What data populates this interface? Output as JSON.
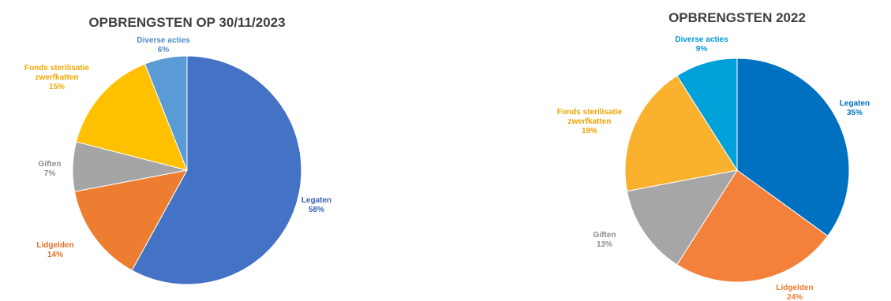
{
  "chart_data": [
    {
      "type": "pie",
      "title": "OPBRENGSTEN OP 30/11/2023",
      "slices": [
        {
          "label": [
            "Legaten"
          ],
          "value": 58,
          "value_label": "58%",
          "color": "#4472C4"
        },
        {
          "label": [
            "Lidgelden"
          ],
          "value": 14,
          "value_label": "14%",
          "color": "#ED7D31"
        },
        {
          "label": [
            "Giften"
          ],
          "value": 7,
          "value_label": "7%",
          "color": "#A5A5A5"
        },
        {
          "label": [
            "Fonds sterilisatie",
            "zwerfkatten"
          ],
          "value": 15,
          "value_label": "15%",
          "color": "#FFC000"
        },
        {
          "label": [
            "Diverse acties"
          ],
          "value": 6,
          "value_label": "6%",
          "color": "#5B9BD5"
        }
      ]
    },
    {
      "type": "pie",
      "title": "OPBRENGSTEN 2022",
      "slices": [
        {
          "label": [
            "Legaten"
          ],
          "value": 35,
          "value_label": "35%",
          "color": "#0070C0"
        },
        {
          "label": [
            "Lidgelden"
          ],
          "value": 24,
          "value_label": "24%",
          "color": "#F4813B"
        },
        {
          "label": [
            "Giften"
          ],
          "value": 13,
          "value_label": "13%",
          "color": "#A6A6A6"
        },
        {
          "label": [
            "Fonds sterilisatie",
            "zwerfkatten"
          ],
          "value": 19,
          "value_label": "19%",
          "color": "#F9B12E"
        },
        {
          "label": [
            "Diverse acties"
          ],
          "value": 9,
          "value_label": "9%",
          "color": "#00A0D8"
        }
      ]
    }
  ]
}
